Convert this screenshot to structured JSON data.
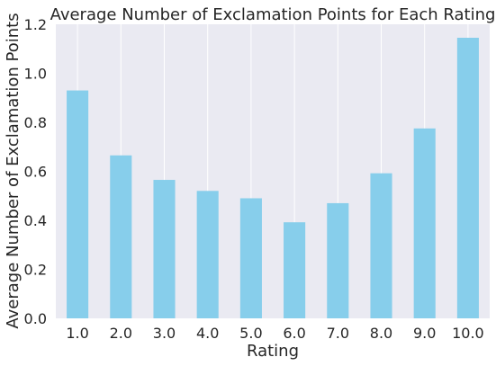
{
  "chart_data": {
    "type": "bar",
    "title": "Average Number of Exclamation Points for Each Rating",
    "xlabel": "Rating",
    "ylabel": "Average Number of Exclamation Points",
    "categories": [
      "1.0",
      "2.0",
      "3.0",
      "4.0",
      "5.0",
      "6.0",
      "7.0",
      "8.0",
      "9.0",
      "10.0"
    ],
    "values": [
      0.93,
      0.665,
      0.565,
      0.52,
      0.49,
      0.392,
      0.47,
      0.592,
      0.775,
      1.145
    ],
    "ylim": [
      0,
      1.2
    ],
    "yticks": [
      "0.0",
      "0.2",
      "0.4",
      "0.6",
      "0.8",
      "1.0",
      "1.2"
    ],
    "grid": "vertical",
    "colors": {
      "bar": "#87CEEB",
      "background": "#EAEAF2",
      "grid": "#FFFFFF"
    }
  }
}
